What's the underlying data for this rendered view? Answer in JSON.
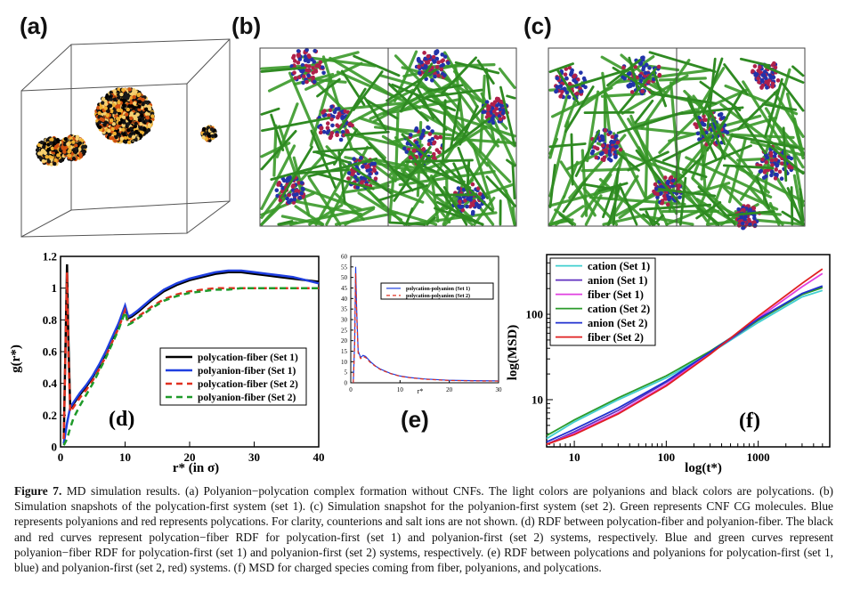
{
  "panels": {
    "a": "(a)",
    "b": "(b)",
    "c": "(c)",
    "d": "(d)",
    "e": "(e)",
    "f": "(f)"
  },
  "caption": {
    "label": "Figure 7.",
    "text": "MD simulation results. (a) Polyanion−polycation complex formation without CNFs. The light colors are polyanions and black colors are polycations. (b) Simulation snapshots of the polycation-first system (set 1). (c) Simulation snapshot for the polyanion-first system (set 2). Green represents CNF CG molecules. Blue represents polyanions and red represents polycations. For clarity, counterions and salt ions are not shown. (d) RDF between polycation-fiber and polyanion-fiber. The black and red curves represent polycation−fiber RDF for polycation-first (set 1) and polyanion-first (set 2) systems, respectively. Blue and green curves represent polyanion−fiber RDF for polycation-first (set 1) and polyanion-first (set 2) systems, respectively. (e) RDF between polycations and polyanions for polycation-first (set 1, blue) and polyanion-first (set 2, red) systems. (f) MSD for charged species coming from fiber, polyanions, and polycations."
  },
  "colors": {
    "cnf": "#3a9a2a",
    "polyanion": "#2233aa",
    "polycation": "#b0204a",
    "black": "#111111"
  },
  "chart_data": [
    {
      "type": "line",
      "xlabel": "r* (in σ)",
      "ylabel": "g(r*)",
      "xlim": [
        0,
        40
      ],
      "ylim": [
        0,
        1.2
      ],
      "xticks": [
        0,
        10,
        20,
        30,
        40
      ],
      "yticks": [
        0,
        0.2,
        0.4,
        0.6,
        0.8,
        1,
        1.2
      ],
      "legend_position": "lower-right",
      "series": [
        {
          "name": "polycation-fiber (Set 1)",
          "color": "#000000",
          "dash": "solid",
          "x": [
            0.5,
            1.0,
            1.2,
            1.5,
            2,
            3,
            4,
            5,
            6,
            7,
            8,
            9,
            10,
            10.5,
            11,
            12,
            14,
            16,
            18,
            20,
            22,
            24,
            26,
            28,
            30,
            32,
            34,
            36,
            38,
            40
          ],
          "y": [
            0.05,
            1.15,
            0.7,
            0.24,
            0.27,
            0.33,
            0.38,
            0.44,
            0.51,
            0.59,
            0.68,
            0.77,
            0.88,
            0.81,
            0.82,
            0.85,
            0.92,
            0.98,
            1.02,
            1.05,
            1.07,
            1.09,
            1.1,
            1.1,
            1.09,
            1.08,
            1.07,
            1.06,
            1.05,
            1.04
          ]
        },
        {
          "name": "polyanion-fiber (Set 1)",
          "color": "#1f3fe0",
          "dash": "solid",
          "x": [
            0.5,
            1.0,
            1.5,
            2,
            3,
            4,
            5,
            6,
            7,
            8,
            9,
            10,
            10.5,
            11,
            12,
            14,
            16,
            18,
            20,
            22,
            24,
            26,
            28,
            30,
            32,
            34,
            36,
            38,
            40
          ],
          "y": [
            0.02,
            0.15,
            0.25,
            0.28,
            0.34,
            0.39,
            0.45,
            0.52,
            0.6,
            0.69,
            0.78,
            0.89,
            0.82,
            0.83,
            0.86,
            0.93,
            0.99,
            1.03,
            1.06,
            1.08,
            1.1,
            1.11,
            1.11,
            1.1,
            1.09,
            1.08,
            1.07,
            1.05,
            1.03
          ]
        },
        {
          "name": "polycation-fiber (Set 2)",
          "color": "#e03020",
          "dash": "dashed",
          "x": [
            0.5,
            1.0,
            1.2,
            1.5,
            2,
            3,
            4,
            5,
            6,
            7,
            8,
            9,
            10,
            10.5,
            11,
            12,
            14,
            16,
            18,
            20,
            22,
            24,
            26,
            28,
            30,
            32,
            34,
            36,
            38,
            40
          ],
          "y": [
            0.05,
            1.1,
            0.6,
            0.22,
            0.25,
            0.31,
            0.36,
            0.42,
            0.49,
            0.57,
            0.66,
            0.75,
            0.86,
            0.78,
            0.79,
            0.82,
            0.88,
            0.93,
            0.96,
            0.98,
            0.99,
            1.0,
            1.0,
            1.0,
            1.0,
            1.0,
            1.0,
            1.0,
            1.0,
            1.0
          ]
        },
        {
          "name": "polyanion-fiber (Set 2)",
          "color": "#1f9a2a",
          "dash": "dashed",
          "x": [
            0.5,
            1.0,
            1.5,
            2,
            3,
            4,
            5,
            6,
            7,
            8,
            9,
            10,
            10.5,
            11,
            12,
            14,
            16,
            18,
            20,
            22,
            24,
            26,
            28,
            30,
            32,
            34,
            36,
            38,
            40
          ],
          "y": [
            0.01,
            0.05,
            0.12,
            0.18,
            0.26,
            0.33,
            0.4,
            0.48,
            0.56,
            0.65,
            0.74,
            0.85,
            0.77,
            0.78,
            0.81,
            0.87,
            0.92,
            0.95,
            0.97,
            0.98,
            0.99,
            0.99,
            1.0,
            1.0,
            1.0,
            1.0,
            1.0,
            1.0,
            1.0
          ]
        }
      ]
    },
    {
      "type": "line",
      "xlabel": "r*",
      "ylabel": "",
      "xlim": [
        0,
        30
      ],
      "ylim": [
        0,
        60
      ],
      "xticks": [
        0,
        10,
        20,
        30
      ],
      "yticks": [
        0,
        5,
        10,
        15,
        20,
        25,
        30,
        35,
        40,
        45,
        50,
        55,
        60
      ],
      "legend_position": "top-right",
      "series": [
        {
          "name": "polycation-polyanion (Set 1)",
          "color": "#1f3fe0",
          "dash": "solid",
          "x": [
            0.5,
            0.8,
            1.0,
            1.2,
            1.5,
            2,
            2.5,
            3,
            4,
            5,
            6,
            8,
            10,
            12,
            15,
            20,
            25,
            30
          ],
          "y": [
            0,
            20,
            55,
            35,
            15,
            12,
            13,
            12.5,
            10,
            8,
            6.5,
            4.5,
            3.2,
            2.5,
            1.8,
            1.2,
            1.0,
            0.9
          ]
        },
        {
          "name": "polycation-polyanion (Set 2)",
          "color": "#e03020",
          "dash": "dashed",
          "x": [
            0.5,
            0.8,
            1.0,
            1.2,
            1.5,
            2,
            2.5,
            3,
            4,
            5,
            6,
            8,
            10,
            12,
            15,
            20,
            25,
            30
          ],
          "y": [
            0,
            18,
            52,
            33,
            14,
            11.5,
            12.5,
            12,
            9.6,
            7.8,
            6.3,
            4.4,
            3.1,
            2.4,
            1.7,
            1.1,
            0.9,
            0.8
          ]
        }
      ]
    },
    {
      "type": "line",
      "xlabel": "log(t*)",
      "ylabel": "log(MSD)",
      "xscale": "log",
      "yscale": "log",
      "xlim": [
        5,
        6000
      ],
      "ylim": [
        2.8,
        500
      ],
      "xticks": [
        10,
        100,
        1000
      ],
      "yticks": [
        10,
        100
      ],
      "legend_position": "top-left",
      "series": [
        {
          "name": "cation (Set 1)",
          "color": "#40d0d0",
          "x": [
            5,
            10,
            30,
            100,
            300,
            1000,
            3000,
            5000
          ],
          "y": [
            3.5,
            5.5,
            10,
            18,
            35,
            80,
            160,
            190
          ]
        },
        {
          "name": "anion (Set 1)",
          "color": "#6030c0",
          "x": [
            5,
            10,
            30,
            100,
            300,
            1000,
            3000,
            5000
          ],
          "y": [
            3.0,
            4.2,
            7.5,
            16,
            35,
            85,
            170,
            210
          ]
        },
        {
          "name": "fiber (Set 1)",
          "color": "#e040e0",
          "x": [
            5,
            10,
            30,
            100,
            300,
            1000,
            3000,
            5000
          ],
          "y": [
            3.0,
            4.0,
            7.0,
            15,
            35,
            90,
            210,
            300
          ]
        },
        {
          "name": "cation (Set 2)",
          "color": "#2a9a2a",
          "x": [
            5,
            10,
            30,
            100,
            300,
            1000,
            3000,
            5000
          ],
          "y": [
            3.8,
            5.8,
            10.5,
            19,
            37,
            85,
            170,
            205
          ]
        },
        {
          "name": "anion (Set 2)",
          "color": "#2030d0",
          "x": [
            5,
            10,
            30,
            100,
            300,
            1000,
            3000,
            5000
          ],
          "y": [
            3.2,
            4.5,
            8,
            16.5,
            36,
            88,
            175,
            215
          ]
        },
        {
          "name": "fiber (Set 2)",
          "color": "#e02020",
          "x": [
            5,
            10,
            30,
            100,
            300,
            1000,
            3000,
            5000
          ],
          "y": [
            3.0,
            3.9,
            6.8,
            14.5,
            34,
            95,
            230,
            340
          ]
        }
      ]
    }
  ]
}
